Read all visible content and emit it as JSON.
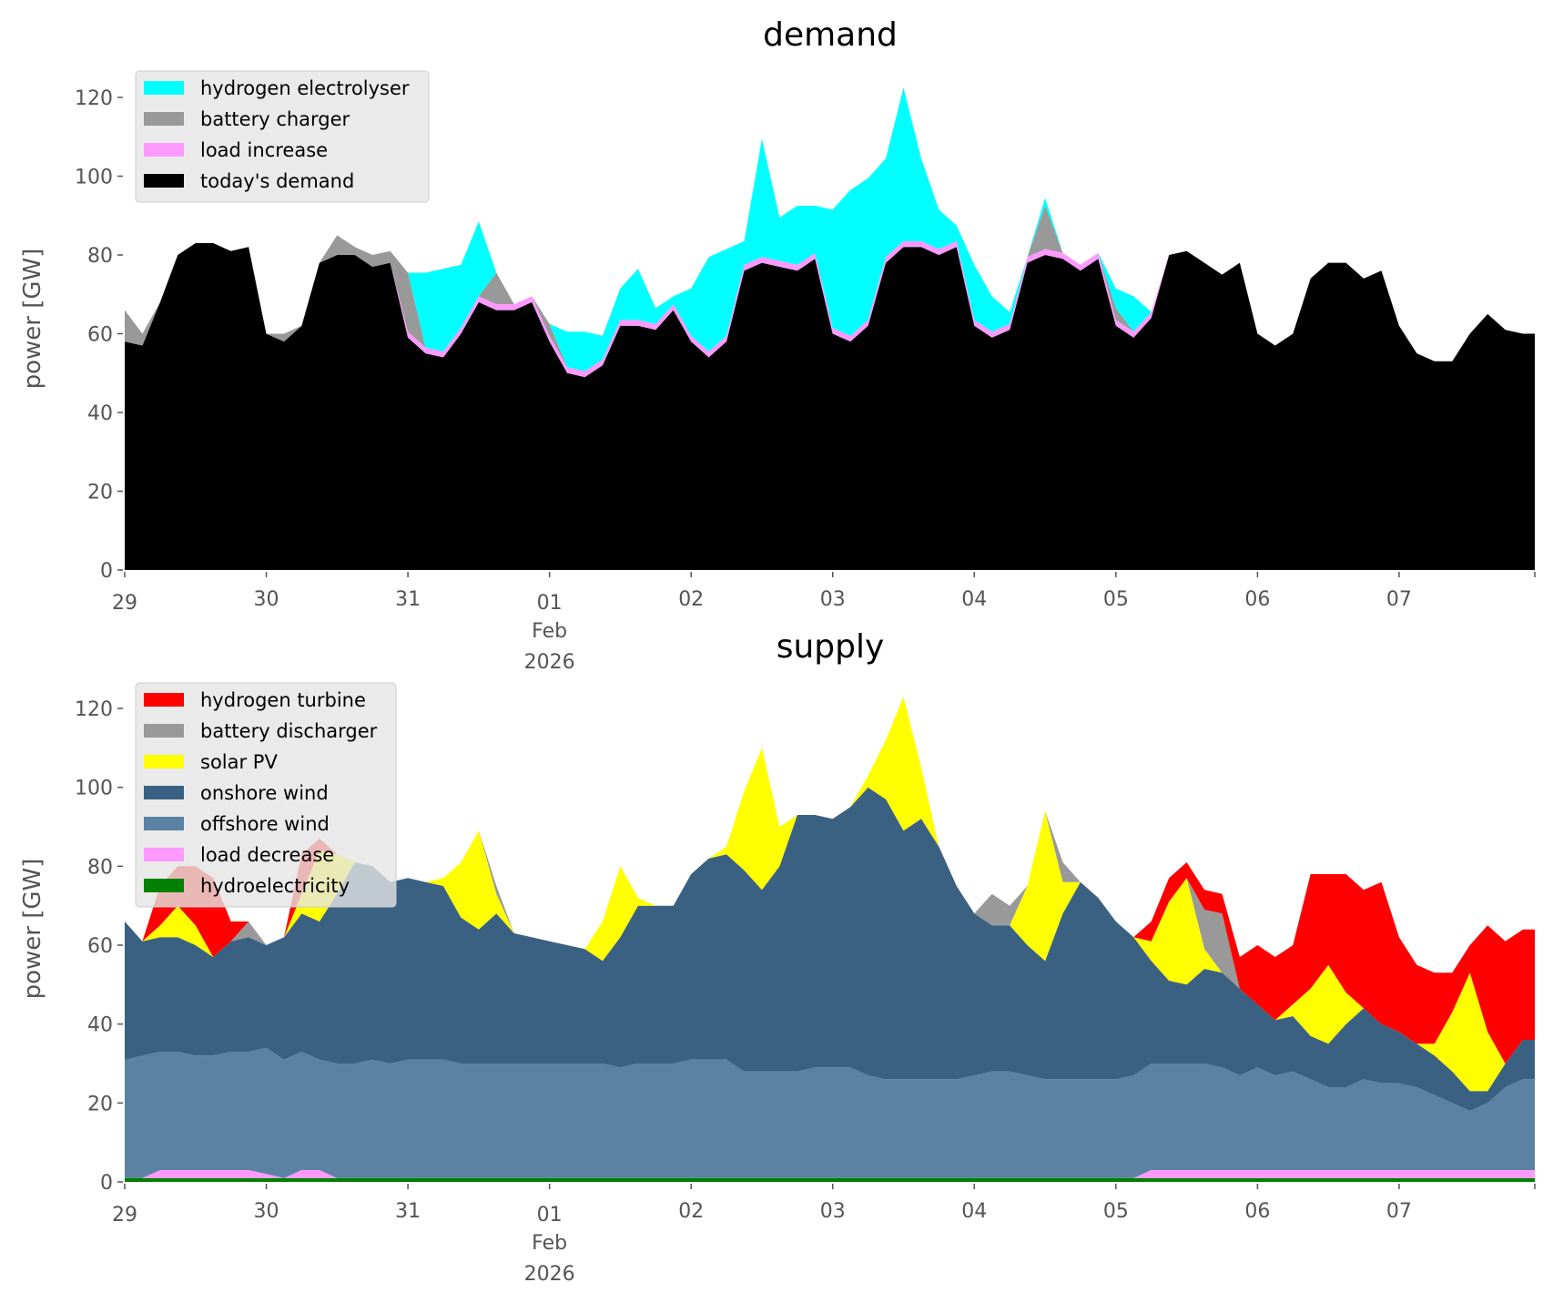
{
  "chart_data": [
    {
      "type": "area",
      "stacked": true,
      "title": "demand",
      "ylabel": "power [GW]",
      "xlabel": "",
      "x_start": "2026-01-29 00:00",
      "x_step_hours": 3,
      "xlim_hours": [
        0,
        239
      ],
      "ylim": [
        0,
        128
      ],
      "yticks": [
        0,
        20,
        40,
        60,
        80,
        100,
        120
      ],
      "xtick_labels": [
        "29",
        "30",
        "31",
        "01",
        "02",
        "03",
        "04",
        "05",
        "06",
        "07"
      ],
      "xtick_sublabel": [
        "Feb",
        "2026"
      ],
      "legend_position": "top-left",
      "series": [
        {
          "name": "today's demand",
          "color": "#000000",
          "values": [
            58,
            57,
            68,
            80,
            83,
            83,
            81,
            82,
            60,
            58,
            62,
            78,
            80,
            80,
            77,
            78,
            59,
            55,
            54,
            60,
            68,
            66,
            66,
            68,
            58,
            50,
            49,
            52,
            62,
            62,
            61,
            66,
            58,
            54,
            58,
            76,
            78,
            77,
            76,
            79,
            60,
            58,
            62,
            78,
            82,
            82,
            80,
            82,
            62,
            59,
            61,
            78,
            80,
            79,
            76,
            79,
            62,
            59,
            64,
            80,
            81,
            78,
            75,
            78,
            60,
            57,
            60,
            74,
            78,
            78,
            74,
            76,
            62,
            55,
            53,
            53,
            60,
            65,
            61,
            60
          ]
        },
        {
          "name": "load increase",
          "color": "#ff99ff",
          "values": [
            0,
            0,
            0,
            0,
            0,
            0,
            0,
            0,
            0,
            0,
            0,
            0,
            0,
            0,
            0,
            0,
            1.5,
            1.5,
            1.5,
            1.5,
            1.5,
            1.5,
            1.5,
            1.5,
            1.5,
            1.5,
            1.5,
            1.5,
            1.5,
            1.5,
            1.5,
            1.5,
            1.5,
            1.5,
            1.5,
            1.5,
            1.5,
            1.5,
            1.5,
            1.5,
            1.5,
            1.5,
            1.5,
            1.5,
            1.5,
            1.5,
            1.5,
            1.5,
            1.5,
            1.5,
            1.5,
            1.5,
            1.5,
            1.5,
            1.5,
            1.5,
            1.5,
            1.5,
            1.5,
            0,
            0,
            0,
            0,
            0,
            0,
            0,
            0,
            0,
            0,
            0,
            0,
            0,
            0,
            0,
            0,
            0,
            0,
            0,
            0,
            0
          ]
        },
        {
          "name": "battery charger",
          "color": "#999999",
          "values": [
            8,
            3,
            0,
            0,
            0,
            0,
            0,
            0,
            0,
            2,
            0,
            0,
            5,
            2,
            3,
            3,
            15,
            0,
            0,
            0,
            0,
            8,
            0,
            0,
            3,
            0,
            0,
            0,
            0,
            0,
            0,
            0,
            0,
            0,
            0,
            0,
            0,
            0,
            0,
            0,
            0,
            0,
            0,
            0,
            0,
            0,
            0,
            0,
            0,
            0,
            0,
            0,
            11,
            0,
            0,
            0,
            3,
            0,
            0,
            0,
            0,
            0,
            0,
            0,
            0,
            0,
            0,
            0,
            0,
            0,
            0,
            0,
            0,
            0,
            0,
            0,
            0,
            0,
            0,
            0
          ]
        },
        {
          "name": "hydrogen electrolyser",
          "color": "#00ffff",
          "values": [
            0,
            0,
            0,
            0,
            0,
            0,
            0,
            0,
            0,
            0,
            0,
            0,
            0,
            0,
            0,
            0,
            0,
            19,
            21,
            16,
            19,
            0,
            0,
            0,
            0,
            9,
            10,
            6,
            8,
            13,
            4,
            2,
            12,
            24,
            22,
            6,
            30,
            11,
            15,
            12,
            30,
            37,
            36,
            25,
            39,
            21,
            10,
            4,
            14,
            9,
            3,
            0,
            2,
            0,
            0,
            0,
            5,
            9,
            0,
            0,
            0,
            0,
            0,
            0,
            0,
            0,
            0,
            0,
            0,
            0,
            0,
            0,
            0,
            0,
            0,
            0,
            0,
            0,
            0,
            0
          ]
        }
      ]
    },
    {
      "type": "area",
      "stacked": true,
      "title": "supply",
      "ylabel": "power [GW]",
      "xlabel": "",
      "x_start": "2026-01-29 00:00",
      "x_step_hours": 3,
      "xlim_hours": [
        0,
        239
      ],
      "ylim": [
        0,
        128
      ],
      "yticks": [
        0,
        20,
        40,
        60,
        80,
        100,
        120
      ],
      "xtick_labels": [
        "29",
        "30",
        "31",
        "01",
        "02",
        "03",
        "04",
        "05",
        "06",
        "07"
      ],
      "xtick_sublabel": [
        "Feb",
        "2026"
      ],
      "legend_position": "top-left",
      "series": [
        {
          "name": "hydroelectricity",
          "color": "#008000",
          "values": [
            1,
            1,
            1,
            1,
            1,
            1,
            1,
            1,
            1,
            1,
            1,
            1,
            1,
            1,
            1,
            1,
            1,
            1,
            1,
            1,
            1,
            1,
            1,
            1,
            1,
            1,
            1,
            1,
            1,
            1,
            1,
            1,
            1,
            1,
            1,
            1,
            1,
            1,
            1,
            1,
            1,
            1,
            1,
            1,
            1,
            1,
            1,
            1,
            1,
            1,
            1,
            1,
            1,
            1,
            1,
            1,
            1,
            1,
            1,
            1,
            1,
            1,
            1,
            1,
            1,
            1,
            1,
            1,
            1,
            1,
            1,
            1,
            1,
            1,
            1,
            1,
            1,
            1,
            1,
            1
          ]
        },
        {
          "name": "load decrease",
          "color": "#ff99ff",
          "values": [
            0,
            0,
            2,
            2,
            2,
            2,
            2,
            2,
            1,
            0,
            2,
            2,
            0,
            0,
            0,
            0,
            0,
            0,
            0,
            0,
            0,
            0,
            0,
            0,
            0,
            0,
            0,
            0,
            0,
            0,
            0,
            0,
            0,
            0,
            0,
            0,
            0,
            0,
            0,
            0,
            0,
            0,
            0,
            0,
            0,
            0,
            0,
            0,
            0,
            0,
            0,
            0,
            0,
            0,
            0,
            0,
            0,
            0,
            2,
            2,
            2,
            2,
            2,
            2,
            2,
            2,
            2,
            2,
            2,
            2,
            2,
            2,
            2,
            2,
            2,
            2,
            2,
            2,
            2,
            2
          ]
        },
        {
          "name": "offshore wind",
          "color": "#5b82a3",
          "values": [
            30,
            31,
            30,
            30,
            29,
            29,
            30,
            30,
            32,
            30,
            30,
            28,
            29,
            29,
            30,
            29,
            30,
            30,
            30,
            29,
            29,
            29,
            29,
            29,
            29,
            29,
            29,
            29,
            28,
            29,
            29,
            29,
            30,
            30,
            30,
            27,
            27,
            27,
            27,
            28,
            28,
            28,
            26,
            25,
            25,
            25,
            25,
            25,
            26,
            27,
            27,
            26,
            25,
            25,
            25,
            25,
            25,
            26,
            27,
            27,
            27,
            27,
            26,
            24,
            26,
            24,
            25,
            23,
            21,
            21,
            23,
            22,
            22,
            21,
            19,
            17,
            15,
            17,
            21,
            23
          ]
        },
        {
          "name": "onshore wind",
          "color": "#3b6182",
          "values": [
            35,
            29,
            29,
            29,
            28,
            25,
            28,
            29,
            26,
            31,
            35,
            35,
            43,
            51,
            49,
            46,
            46,
            45,
            44,
            37,
            34,
            38,
            33,
            32,
            31,
            30,
            29,
            26,
            33,
            40,
            40,
            40,
            47,
            51,
            52,
            51,
            46,
            52,
            65,
            64,
            63,
            66,
            73,
            71,
            63,
            66,
            59,
            49,
            41,
            37,
            37,
            33,
            30,
            42,
            50,
            46,
            40,
            35,
            26,
            21,
            20,
            24,
            24,
            22,
            16,
            14,
            14,
            11,
            11,
            16,
            18,
            15,
            13,
            11,
            10,
            8,
            5,
            3,
            6,
            10
          ]
        },
        {
          "name": "solar PV",
          "color": "#ffff00",
          "values": [
            0,
            0,
            3,
            8,
            5,
            0,
            0,
            0,
            0,
            0,
            5,
            18,
            10,
            0,
            0,
            0,
            0,
            0,
            2,
            14,
            25,
            5,
            0,
            0,
            0,
            0,
            0,
            10,
            18,
            2,
            0,
            0,
            0,
            0,
            2,
            20,
            36,
            10,
            0,
            0,
            0,
            0,
            3,
            15,
            34,
            13,
            0,
            0,
            0,
            0,
            0,
            15,
            38,
            8,
            0,
            0,
            0,
            0,
            5,
            20,
            27,
            5,
            0,
            0,
            0,
            0,
            3,
            12,
            20,
            8,
            0,
            0,
            0,
            0,
            3,
            15,
            30,
            15,
            0,
            0
          ]
        },
        {
          "name": "battery discharger",
          "color": "#999999",
          "values": [
            0,
            0,
            0,
            0,
            0,
            0,
            0,
            4,
            0,
            0,
            0,
            0,
            0,
            0,
            0,
            0,
            0,
            0,
            0,
            0,
            0,
            2,
            0,
            0,
            0,
            0,
            0,
            0,
            0,
            0,
            0,
            0,
            0,
            0,
            0,
            0,
            0,
            0,
            0,
            0,
            0,
            0,
            0,
            0,
            0,
            0,
            0,
            0,
            0,
            8,
            5,
            0,
            0,
            5,
            0,
            0,
            0,
            0,
            0,
            0,
            0,
            10,
            15,
            0,
            0,
            0,
            0,
            0,
            0,
            0,
            0,
            0,
            0,
            0,
            0,
            0,
            0,
            0,
            0,
            0
          ]
        },
        {
          "name": "hydrogen turbine",
          "color": "#ff0000",
          "values": [
            0,
            0,
            10,
            10,
            15,
            20,
            5,
            0,
            0,
            0,
            10,
            3,
            0,
            0,
            0,
            0,
            0,
            0,
            0,
            0,
            0,
            0,
            0,
            0,
            0,
            0,
            0,
            0,
            0,
            0,
            0,
            0,
            0,
            0,
            0,
            0,
            0,
            0,
            0,
            0,
            0,
            0,
            0,
            0,
            0,
            0,
            0,
            0,
            0,
            0,
            0,
            0,
            0,
            0,
            0,
            0,
            0,
            0,
            5,
            6,
            4,
            5,
            5,
            8,
            15,
            16,
            15,
            29,
            23,
            30,
            30,
            36,
            24,
            20,
            18,
            10,
            7,
            27,
            31,
            28
          ]
        }
      ]
    }
  ]
}
